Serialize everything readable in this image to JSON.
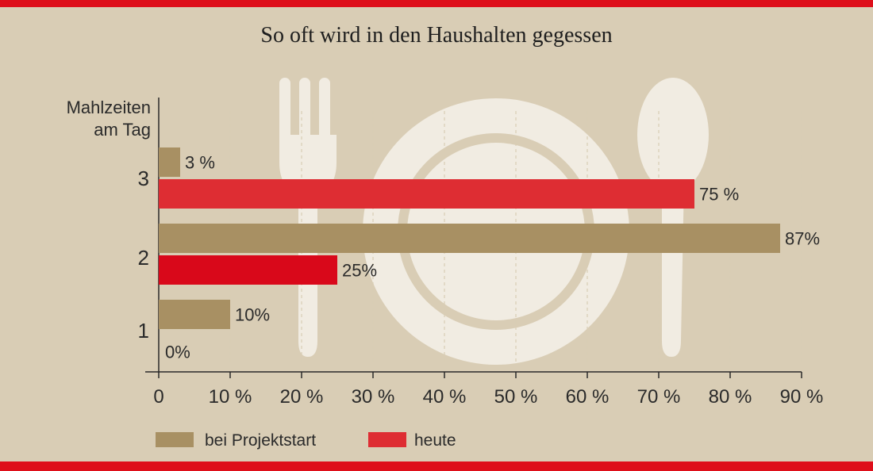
{
  "chart_data": {
    "type": "bar",
    "title": "So oft wird in den Haushalten gegessen",
    "ylabel_line1": "Mahlzeiten",
    "ylabel_line2": "am Tag",
    "categories": [
      "3",
      "2",
      "1"
    ],
    "series": [
      {
        "name": "bei Projektstart",
        "values": [
          3,
          87,
          10
        ],
        "labels": [
          "3 %",
          "87%",
          "10%"
        ],
        "color": "#a89063"
      },
      {
        "name": "heute",
        "values": [
          75,
          25,
          0
        ],
        "labels": [
          "75 %",
          "25%",
          "0%"
        ],
        "color": "#de2d33"
      }
    ],
    "xticks": [
      0,
      10,
      20,
      30,
      40,
      50,
      60,
      70,
      80,
      90
    ],
    "xtick_labels": [
      "0",
      "10 %",
      "20 %",
      "30 %",
      "40 %",
      "50 %",
      "60 %",
      "70 %",
      "80 %",
      "90 %"
    ],
    "xlim": [
      0,
      90
    ],
    "orientation": "horizontal",
    "legend_position": "bottom",
    "grid": "dashed vertical lines on plate"
  },
  "colors": {
    "background": "#d9cdb5",
    "accent_bar": "#de0f1a",
    "silhouette": "#f1ece2",
    "text": "#2a2a2a"
  }
}
